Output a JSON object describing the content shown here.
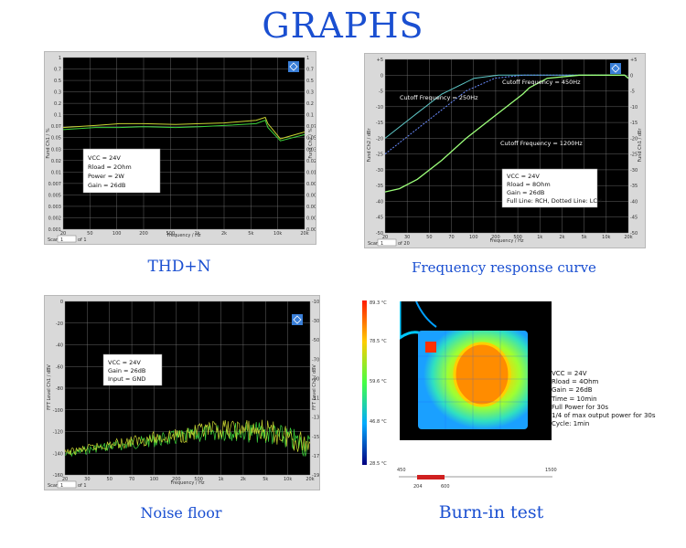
{
  "page_title": "GRAPHS",
  "thd": {
    "caption": "THD+N",
    "ylabel_left": "Fund Ch1 / %",
    "ylabel_right": "Fund Ch2 / %",
    "xlabel": "Frequency / Hz",
    "x_ticks": [
      "20",
      "50",
      "100",
      "200",
      "500",
      "1k",
      "2k",
      "5k",
      "10k",
      "20k"
    ],
    "y_ticks_left": [
      "1",
      "0.7",
      "0.5",
      "0.3",
      "0.2",
      "0.1",
      "0.07",
      "0.05",
      "0.03",
      "0.02",
      "0.01",
      "0.007",
      "0.005",
      "0.003",
      "0.002",
      "0.001"
    ],
    "y_ticks_right": [
      "1",
      "0.7",
      "0.5",
      "0.3",
      "0.2",
      "0.1",
      "0.07",
      "0.05",
      "0.03",
      "0.02",
      "0.01",
      "0.007",
      "0.005",
      "0.003",
      "0.002",
      "0.001"
    ],
    "legend": [
      "VCC = 24V",
      "Rload = 2Ohm",
      "Power = 2W",
      "Gain = 26dB"
    ],
    "scan_label": "Scan",
    "scan_value": "1",
    "scan_of": "of 1"
  },
  "freq": {
    "caption": "Frequency response curve",
    "ylabel_left": "Fund Ch2 / dBr",
    "ylabel_right": "Fund Ch1 / dBr",
    "xlabel": "Frequency / Hz",
    "x_ticks": [
      "20",
      "30",
      "50",
      "70",
      "100",
      "200",
      "500",
      "1k",
      "2k",
      "5k",
      "10k",
      "20k"
    ],
    "y_ticks": [
      "+5",
      "0",
      "-5",
      "-10",
      "-15",
      "-20",
      "-25",
      "-30",
      "-35",
      "-40",
      "-45",
      "-50"
    ],
    "annotations": [
      "Cutoff Frequency = 250Hz",
      "Cutoff Frequency = 450Hz",
      "Cutoff Frequency = 1200Hz"
    ],
    "legend": [
      "VCC = 24V",
      "Rload = 8Ohm",
      "Gain = 26dB",
      "Full Line: RCH, Dotted Line: LCH"
    ],
    "scan_label": "Scan",
    "scan_value": "1",
    "scan_of": "of 20"
  },
  "noise": {
    "caption": "Noise floor",
    "ylabel_left": "FFT Level Ch1 / dBV",
    "ylabel_right": "FFT Level Ch2 / dBV",
    "xlabel": "Frequency / Hz",
    "x_ticks": [
      "20",
      "30",
      "50",
      "70",
      "100",
      "200",
      "500",
      "1k",
      "2k",
      "5k",
      "10k",
      "20k"
    ],
    "y_ticks_left": [
      "0",
      "-20",
      "-40",
      "-60",
      "-80",
      "-100",
      "-120",
      "-140",
      "-160"
    ],
    "y_ticks_right": [
      "-10",
      "-30",
      "-50",
      "-70",
      "-90",
      "-110",
      "-130",
      "-150",
      "-170",
      "-190"
    ],
    "legend": [
      "VCC = 24V",
      "Gain = 26dB",
      "Input = GND"
    ],
    "scan_label": "Scan",
    "scan_value": "1",
    "scan_of": "of 1"
  },
  "burn": {
    "caption": "Burn-in test",
    "scale_ticks": [
      "89.3 °C",
      "78.5 °C",
      "59.6 °C",
      "46.8 °C",
      "28.5 °C"
    ],
    "notes": [
      "VCC = 24V",
      "Rload = 4Ohm",
      "Gain = 26dB",
      "Time = 10min",
      "Full Power for 30s",
      "1/4 of max output power for 30s",
      "Cycle: 1min"
    ],
    "bar_left": "450",
    "bar_right": "1500",
    "bar_sub_left": "204",
    "bar_sub_right": "600"
  },
  "colors": {
    "title": "#1a4fd1",
    "plot_bg": "#000000",
    "grid": "#7d7d7d",
    "trace_green": "#3cd43c",
    "trace_yellow": "#c8d432",
    "trace_cyan": "#5ec8c8",
    "trace_blue": "#6a8cff"
  },
  "chart_data": [
    {
      "type": "line",
      "title": "THD+N",
      "xlabel": "Frequency / Hz",
      "ylabel": "Fund Ch1 / %",
      "x_scale": "log",
      "y_scale": "log",
      "xlim": [
        20,
        20000
      ],
      "ylim": [
        0.001,
        1
      ],
      "series": [
        {
          "x": [
            20,
            50,
            100,
            200,
            500,
            1000,
            2000,
            5000,
            6500,
            7000,
            10000,
            20000
          ],
          "y": [
            0.06,
            0.065,
            0.07,
            0.07,
            0.068,
            0.07,
            0.072,
            0.08,
            0.09,
            0.07,
            0.038,
            0.05
          ]
        },
        {
          "x": [
            20,
            50,
            100,
            200,
            500,
            1000,
            2000,
            5000,
            6500,
            7000,
            10000,
            20000
          ],
          "y": [
            0.055,
            0.06,
            0.06,
            0.062,
            0.06,
            0.062,
            0.065,
            0.07,
            0.08,
            0.06,
            0.035,
            0.045
          ]
        }
      ]
    },
    {
      "type": "line",
      "title": "Frequency response curve",
      "xlabel": "Frequency / Hz",
      "ylabel": "Fund Ch2 / dBr",
      "x_scale": "log",
      "xlim": [
        20,
        20000
      ],
      "ylim": [
        -50,
        5
      ],
      "series": [
        {
          "x": [
            20,
            50,
            100,
            250,
            500,
            1000,
            1200,
            2000,
            5000,
            10000,
            18000,
            20000
          ],
          "y": [
            -20,
            -12,
            -6,
            -1,
            0,
            0,
            0,
            0,
            0,
            0,
            0,
            -1
          ]
        },
        {
          "x": [
            20,
            50,
            100,
            200,
            450,
            1000,
            2000,
            5000,
            10000,
            18000,
            20000
          ],
          "y": [
            -25,
            -17,
            -11,
            -5,
            -1,
            0,
            0,
            0,
            0,
            0,
            -1
          ]
        },
        {
          "x": [
            20,
            30,
            50,
            100,
            200,
            500,
            1000,
            1200,
            2000,
            5000,
            10000,
            18000,
            20000
          ],
          "y": [
            -37,
            -36,
            -33,
            -27,
            -20,
            -12,
            -6,
            -4,
            -1,
            0,
            0,
            0,
            -1
          ]
        }
      ]
    },
    {
      "type": "line",
      "title": "Noise floor",
      "xlabel": "Frequency / Hz",
      "ylabel": "FFT Level Ch1 / dBV",
      "x_scale": "log",
      "xlim": [
        20,
        20000
      ],
      "ylim": [
        -160,
        0
      ],
      "series": [
        {
          "x": [
            20,
            50,
            100,
            200,
            500,
            1000,
            2000,
            5000,
            10000,
            20000
          ],
          "y": [
            -140,
            -133,
            -130,
            -126,
            -122,
            -118,
            -115,
            -116,
            -120,
            -128
          ]
        },
        {
          "x": [
            20,
            50,
            100,
            200,
            500,
            1000,
            2000,
            5000,
            10000,
            20000
          ],
          "y": [
            -138,
            -132,
            -128,
            -124,
            -120,
            -116,
            -113,
            -114,
            -118,
            -126
          ]
        }
      ]
    }
  ]
}
